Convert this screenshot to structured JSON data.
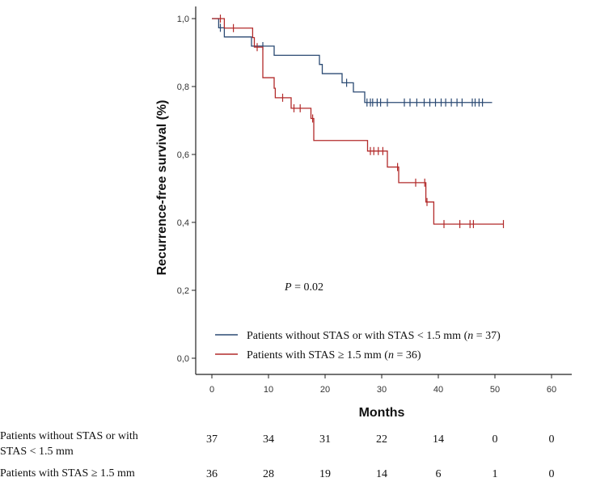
{
  "chart_data": {
    "type": "line",
    "subtype": "kaplan-meier",
    "xlabel": "Months",
    "ylabel": "Recurrence-free survival (%)",
    "xlim": [
      0,
      60
    ],
    "ylim": [
      0,
      1
    ],
    "xticks": [
      "0",
      "10",
      "20",
      "30",
      "40",
      "50",
      "60"
    ],
    "xtick_values": [
      0,
      10,
      20,
      30,
      40,
      50,
      60
    ],
    "yticks": [
      "0,0",
      "0,2",
      "0,4",
      "0,6",
      "0,8",
      "1,0"
    ],
    "ytick_values": [
      0,
      0.2,
      0.4,
      0.6,
      0.8,
      1.0
    ],
    "annotation": {
      "p_label": "P",
      "p_rest": " = 0.02"
    },
    "legend_position": "bottom-left",
    "series": [
      {
        "name": "Patients without STAS or with STAS < 1.5 mm (n = 37)",
        "legend_pre": "Patients without STAS or with STAS < 1.5 mm (",
        "legend_n": "n",
        "legend_post": " = 37)",
        "color": "#2b4a73",
        "steps": [
          [
            0,
            1.0
          ],
          [
            1.2,
            0.973
          ],
          [
            2.2,
            0.946
          ],
          [
            7.0,
            0.919
          ],
          [
            11.0,
            0.892
          ],
          [
            19.0,
            0.865
          ],
          [
            19.5,
            0.838
          ],
          [
            23.0,
            0.811
          ],
          [
            25.0,
            0.784
          ],
          [
            27.0,
            0.753
          ],
          [
            49.5,
            0.753
          ]
        ],
        "censored": [
          1.5,
          9.0,
          23.8,
          27.4,
          28.0,
          28.4,
          29.2,
          29.8,
          31.0,
          34.0,
          35.0,
          36.2,
          37.5,
          38.5,
          39.5,
          40.5,
          41.3,
          42.3,
          43.3,
          44.2,
          46.0,
          46.5,
          47.2,
          47.8
        ]
      },
      {
        "name": "Patients with STAS ≥ 1.5 mm (n = 36)",
        "legend_pre": "Patients with STAS ≥ 1.5 mm  (",
        "legend_n": "n",
        "legend_post": " = 36)",
        "color": "#b22a2a",
        "steps": [
          [
            0,
            1.0
          ],
          [
            2.2,
            0.972
          ],
          [
            7.2,
            0.944
          ],
          [
            7.5,
            0.916
          ],
          [
            9.0,
            0.826
          ],
          [
            11.0,
            0.795
          ],
          [
            11.2,
            0.767
          ],
          [
            14.0,
            0.736
          ],
          [
            17.5,
            0.706
          ],
          [
            18.0,
            0.641
          ],
          [
            27.5,
            0.61
          ],
          [
            31.0,
            0.563
          ],
          [
            33.0,
            0.517
          ],
          [
            37.8,
            0.46
          ],
          [
            39.2,
            0.395
          ],
          [
            51.5,
            0.395
          ]
        ],
        "censored": [
          1.5,
          3.8,
          8.0,
          12.5,
          14.5,
          15.6,
          17.8,
          28.0,
          28.6,
          29.4,
          30.2,
          32.8,
          36.0,
          37.6,
          38.0,
          41.0,
          43.8,
          45.6,
          46.2,
          51.5
        ]
      }
    ]
  },
  "risk_table": {
    "rows": [
      {
        "label_line1": "Patients without STAS or with",
        "label_line2": "STAS < 1.5 mm",
        "values": [
          "37",
          "34",
          "31",
          "22",
          "14",
          "0",
          "0"
        ]
      },
      {
        "label_line1": "Patients with STAS ≥ 1.5 mm",
        "label_line2": "",
        "values": [
          "36",
          "28",
          "19",
          "14",
          "6",
          "1",
          "0"
        ]
      }
    ]
  }
}
